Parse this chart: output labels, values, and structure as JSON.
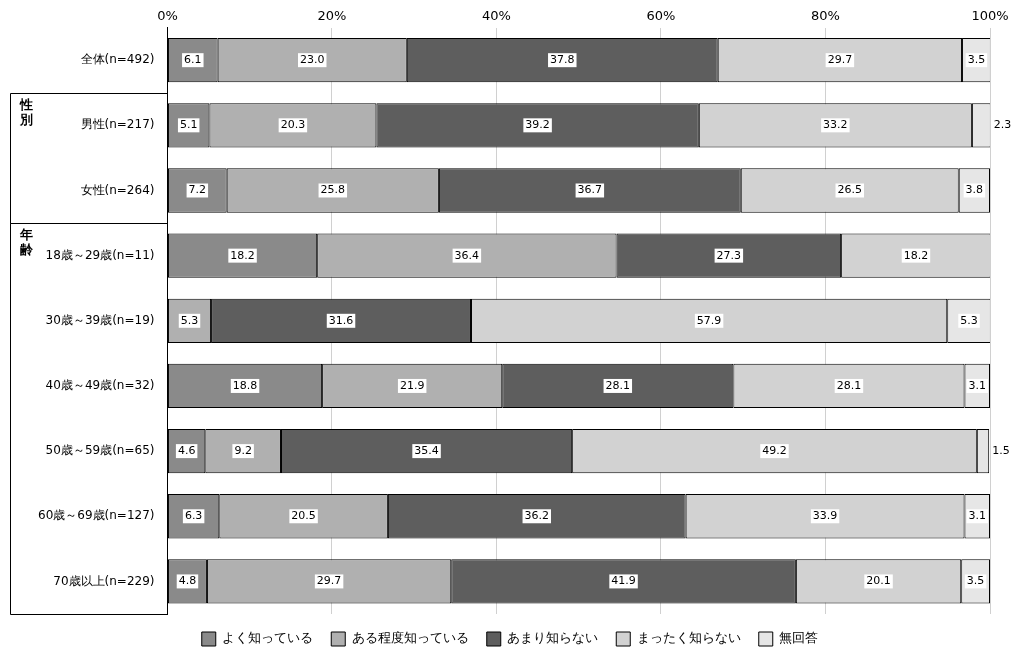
{
  "chart_data": {
    "type": "bar",
    "orientation": "horizontal",
    "stacked": true,
    "categories": [
      "全体(n=492)",
      "男性(n=217)",
      "女性(n=264)",
      "18歳～29歳(n=11)",
      "30歳～39歳(n=19)",
      "40歳～49歳(n=32)",
      "50歳～59歳(n=65)",
      "60歳～69歳(n=127)",
      "70歳以上(n=229)"
    ],
    "series": [
      {
        "name": "よく知っている",
        "color": "#8a8a8a",
        "values": [
          6.1,
          5.1,
          7.2,
          18.2,
          null,
          18.8,
          4.6,
          6.3,
          4.8
        ],
        "value_labels": [
          "6.1",
          "5.1",
          "7.2",
          "18.2",
          null,
          "18.8",
          "4.6",
          "6.3",
          "4.8"
        ]
      },
      {
        "name": "ある程度知っている",
        "color": "#b0b0b0",
        "values": [
          23.0,
          20.3,
          25.8,
          36.4,
          5.3,
          21.9,
          9.2,
          20.5,
          29.7
        ],
        "value_labels": [
          "23.0",
          "20.3",
          "25.8",
          "36.4",
          "5.3",
          "21.9",
          "9.2",
          "20.5",
          "29.7"
        ]
      },
      {
        "name": "あまり知らない",
        "color": "#5e5e5e",
        "values": [
          37.8,
          39.2,
          36.7,
          27.3,
          31.6,
          28.1,
          35.4,
          36.2,
          41.9
        ],
        "value_labels": [
          "37.8",
          "39.2",
          "36.7",
          "27.3",
          "31.6",
          "28.1",
          "35.4",
          "36.2",
          "41.9"
        ]
      },
      {
        "name": "まったく知らない",
        "color": "#d2d2d2",
        "values": [
          29.7,
          33.2,
          26.5,
          18.2,
          57.9,
          28.1,
          49.2,
          33.9,
          20.1
        ],
        "value_labels": [
          "29.7",
          "33.2",
          "26.5",
          "18.2",
          "57.9",
          "28.1",
          "49.2",
          "33.9",
          "20.1"
        ]
      },
      {
        "name": "無回答",
        "color": "#e6e6e6",
        "values": [
          3.5,
          2.3,
          3.8,
          null,
          5.3,
          3.1,
          1.5,
          3.1,
          3.5
        ],
        "value_labels": [
          "3.5",
          "2.3",
          "3.8",
          null,
          "5.3",
          "3.1",
          "1.5",
          "3.1",
          "3.5"
        ]
      }
    ],
    "xlim": [
      0,
      100
    ],
    "xticks": [
      {
        "value": 0,
        "label": "0%"
      },
      {
        "value": 20,
        "label": "20%"
      },
      {
        "value": 40,
        "label": "40%"
      },
      {
        "value": 60,
        "label": "60%"
      },
      {
        "value": 80,
        "label": "80%"
      },
      {
        "value": 100,
        "label": "100%"
      }
    ],
    "grid": "x",
    "legend": "bottom",
    "annotations": [
      "性別",
      "年齢"
    ]
  }
}
